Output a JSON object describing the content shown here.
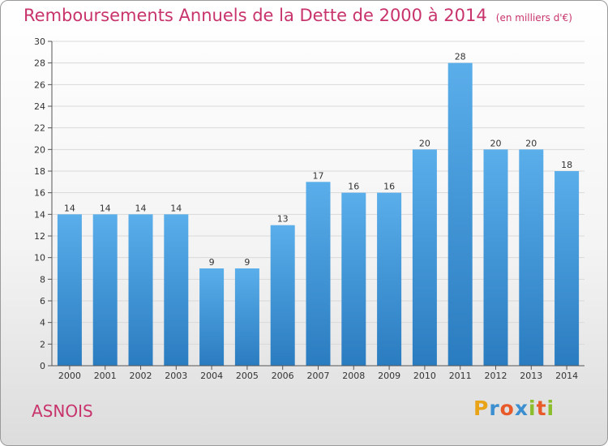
{
  "header": {
    "title": "Remboursements Annuels de la Dette de 2000 à 2014",
    "unit": "(en milliers d'€)"
  },
  "footer": {
    "city": "ASNOIS",
    "brand": "Proxiti"
  },
  "colors": {
    "title": "#c8336b",
    "bar_top": "#5aaeea",
    "bar_bottom": "#2a7cc0",
    "grid": "#d9d9d9"
  },
  "chart_data": {
    "type": "bar",
    "title": "Remboursements Annuels de la Dette de 2000 à 2014",
    "subtitle": "(en milliers d'€)",
    "xlabel": "",
    "ylabel": "",
    "categories": [
      "2000",
      "2001",
      "2002",
      "2003",
      "2004",
      "2005",
      "2006",
      "2007",
      "2008",
      "2009",
      "2010",
      "2011",
      "2012",
      "2013",
      "2014"
    ],
    "values": [
      14,
      14,
      14,
      14,
      9,
      9,
      13,
      17,
      16,
      16,
      20,
      28,
      20,
      20,
      18
    ],
    "ylim": [
      0,
      30
    ],
    "yticks": [
      0,
      2,
      4,
      6,
      8,
      10,
      12,
      14,
      16,
      18,
      20,
      22,
      24,
      26,
      28,
      30
    ],
    "grid": true,
    "data_labels": true
  }
}
